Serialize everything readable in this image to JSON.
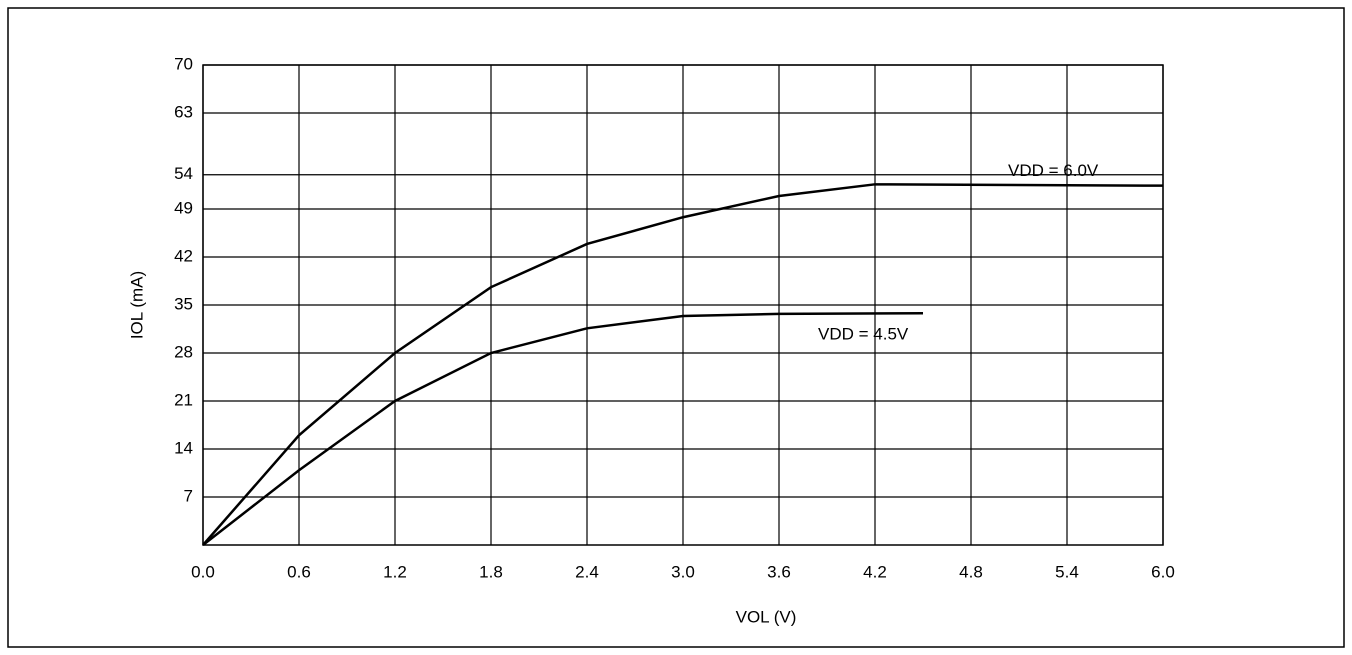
{
  "chart_data": {
    "type": "line",
    "xlabel": "VOL (V)",
    "ylabel": "IOL (mA)",
    "xlim": [
      0,
      6
    ],
    "ylim": [
      0,
      70
    ],
    "xticks": [
      {
        "value": 0,
        "label": "0.0"
      },
      0.6,
      1.2,
      1.8,
      2.4,
      {
        "value": 3,
        "label": "3.0"
      },
      3.6,
      4.2,
      4.8,
      5.4,
      {
        "value": 6,
        "label": "6.0"
      }
    ],
    "yticks": [
      7,
      14,
      21,
      28,
      35,
      42,
      49,
      54,
      63,
      70
    ],
    "grid": true,
    "series": [
      {
        "name": "VDD = 6.0V",
        "color": "#000000",
        "x": [
          0,
          0.6,
          1.2,
          1.8,
          2.4,
          3.0,
          3.6,
          4.2,
          6.0
        ],
        "values": [
          0,
          16,
          28,
          37.6,
          43.9,
          47.8,
          50.9,
          52.6,
          52.4
        ]
      },
      {
        "name": "VDD = 4.5V",
        "color": "#000000",
        "x": [
          0,
          0.6,
          1.2,
          1.8,
          2.4,
          3.0,
          3.6,
          4.5
        ],
        "values": [
          0,
          10.9,
          21,
          28,
          31.6,
          33.4,
          33.7,
          33.8
        ]
      }
    ]
  }
}
